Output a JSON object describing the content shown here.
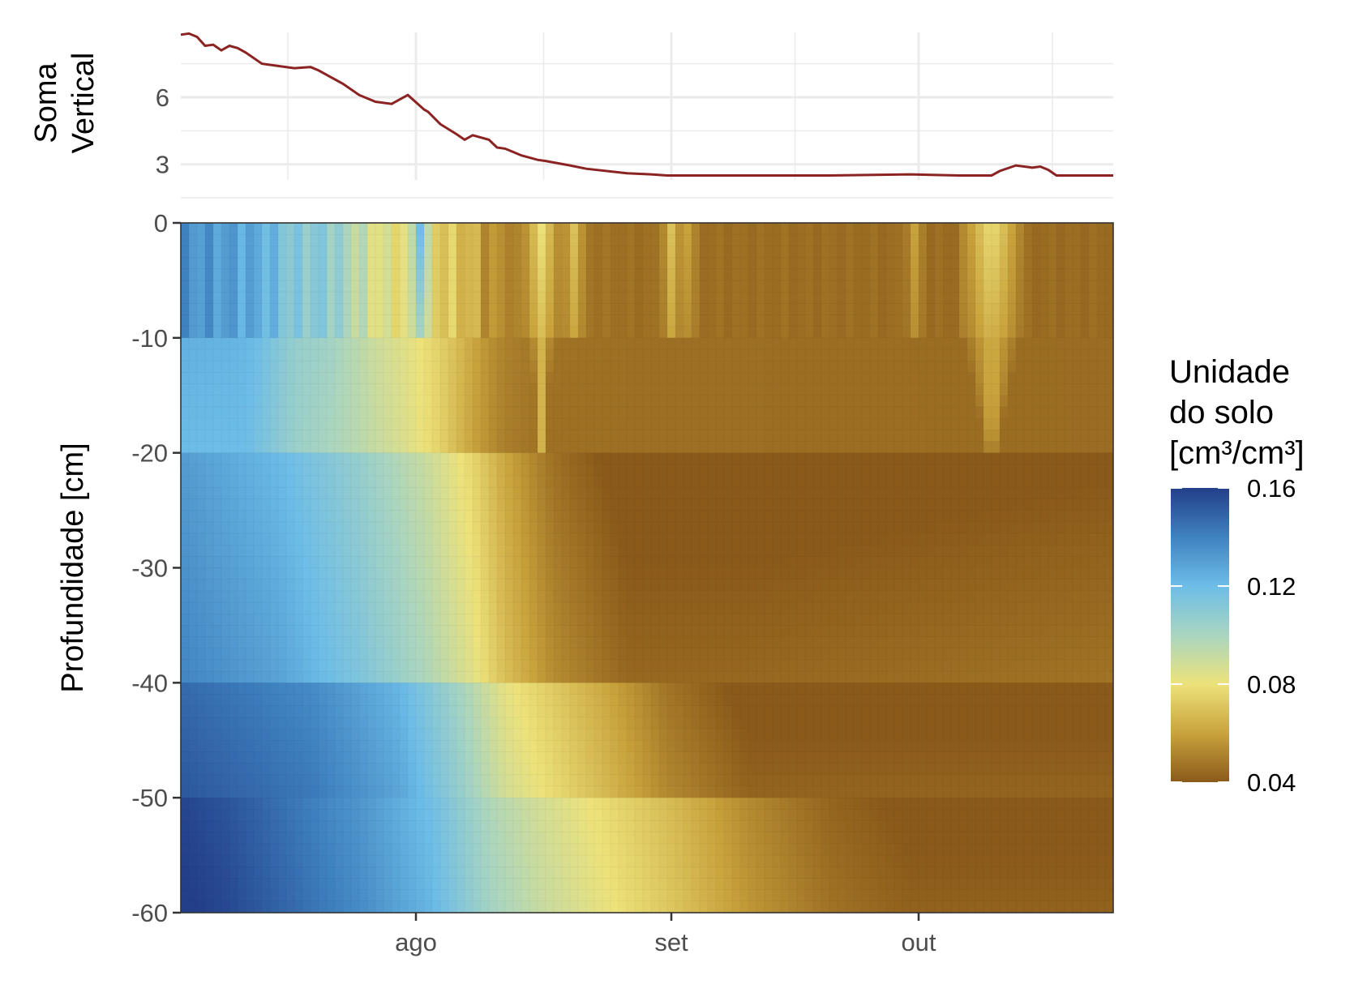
{
  "chart_data": [
    {
      "type": "line",
      "ylabel": "Soma\nVertical",
      "y_ticks": [
        3,
        6
      ],
      "ylim": [
        2.3,
        8.9
      ],
      "grid": true,
      "line_color": "#8B2323",
      "series": [
        {
          "x": [
            0,
            1,
            2,
            3,
            4,
            5,
            6,
            7,
            8,
            10,
            12,
            14,
            16,
            17,
            18,
            20,
            22,
            24,
            26,
            28,
            30,
            30.5,
            32,
            34,
            35,
            36,
            38,
            39,
            40,
            42,
            43,
            44,
            45,
            48,
            50,
            55,
            58,
            60,
            62,
            70,
            74,
            80,
            90,
            96,
            100,
            101,
            103,
            105,
            106,
            107,
            108,
            110,
            111,
            112,
            115
          ],
          "y": [
            8.8,
            8.85,
            8.7,
            8.3,
            8.35,
            8.1,
            8.3,
            8.2,
            8.0,
            7.5,
            7.4,
            7.3,
            7.35,
            7.2,
            7.0,
            6.6,
            6.1,
            5.8,
            5.7,
            6.1,
            5.45,
            5.35,
            4.8,
            4.35,
            4.1,
            4.3,
            4.1,
            3.75,
            3.7,
            3.4,
            3.3,
            3.2,
            3.15,
            2.95,
            2.8,
            2.6,
            2.55,
            2.5,
            2.5,
            2.5,
            2.5,
            2.5,
            2.55,
            2.5,
            2.5,
            2.7,
            2.95,
            2.85,
            2.9,
            2.75,
            2.5,
            2.5,
            2.5,
            2.5,
            2.5
          ]
        }
      ]
    },
    {
      "type": "heatmap",
      "ylabel": "Profundidade [cm]",
      "x_ticks": [
        {
          "label": "ago",
          "x": 29
        },
        {
          "label": "set",
          "x": 60.5
        },
        {
          "label": "out",
          "x": 91
        }
      ],
      "xlim": [
        0,
        115
      ],
      "y_ticks": [
        "0",
        "-10",
        "-20",
        "-30",
        "-40",
        "-50",
        "-60"
      ],
      "ylim": [
        -60,
        0
      ],
      "layers_cm": [
        [
          0,
          -10
        ],
        [
          -10,
          -20
        ],
        [
          -20,
          -40
        ],
        [
          -40,
          -50
        ],
        [
          -50,
          -60
        ]
      ],
      "layer_profiles": {
        "-10": [
          [
            0,
            0.135
          ],
          [
            6,
            0.13
          ],
          [
            10,
            0.125
          ],
          [
            14,
            0.11
          ],
          [
            18,
            0.11
          ],
          [
            24,
            0.085
          ],
          [
            31,
            0.075
          ],
          [
            34,
            0.07
          ],
          [
            36,
            0.065
          ],
          [
            38,
            0.055
          ],
          [
            42,
            0.05
          ],
          [
            55,
            0.046
          ],
          [
            100,
            0.045
          ],
          [
            115,
            0.045
          ]
        ],
        "-15": [
          [
            0,
            0.12
          ],
          [
            8,
            0.12
          ],
          [
            14,
            0.105
          ],
          [
            22,
            0.095
          ],
          [
            28,
            0.085
          ],
          [
            32,
            0.075
          ],
          [
            36,
            0.06
          ],
          [
            40,
            0.05
          ],
          [
            45,
            0.046
          ],
          [
            115,
            0.045
          ]
        ],
        "-30": [
          [
            0,
            0.135
          ],
          [
            6,
            0.13
          ],
          [
            12,
            0.125
          ],
          [
            22,
            0.11
          ],
          [
            30,
            0.095
          ],
          [
            36,
            0.08
          ],
          [
            40,
            0.065
          ],
          [
            46,
            0.05
          ],
          [
            55,
            0.04
          ],
          [
            70,
            0.04
          ],
          [
            115,
            0.043
          ]
        ],
        "-45": [
          [
            0,
            0.15
          ],
          [
            8,
            0.145
          ],
          [
            16,
            0.14
          ],
          [
            27,
            0.125
          ],
          [
            34,
            0.105
          ],
          [
            40,
            0.085
          ],
          [
            46,
            0.075
          ],
          [
            52,
            0.065
          ],
          [
            60,
            0.05
          ],
          [
            70,
            0.04
          ],
          [
            115,
            0.04
          ]
        ],
        "-55": [
          [
            0,
            0.16
          ],
          [
            6,
            0.155
          ],
          [
            14,
            0.145
          ],
          [
            22,
            0.135
          ],
          [
            31,
            0.12
          ],
          [
            38,
            0.1
          ],
          [
            44,
            0.09
          ],
          [
            52,
            0.08
          ],
          [
            60,
            0.07
          ],
          [
            70,
            0.055
          ],
          [
            80,
            0.045
          ],
          [
            90,
            0.04
          ],
          [
            115,
            0.04
          ]
        ]
      },
      "surface_wet_events": [
        {
          "x": 29.5,
          "width": 1,
          "value": 0.12
        },
        {
          "x": 44.5,
          "width": 3,
          "value": 0.08
        },
        {
          "x": 48.5,
          "width": 1,
          "value": 0.07
        },
        {
          "x": 60.5,
          "width": 1,
          "value": 0.07
        },
        {
          "x": 62.5,
          "width": 1,
          "value": 0.06
        },
        {
          "x": 90.5,
          "width": 1,
          "value": 0.06
        },
        {
          "x": 100,
          "width": 7,
          "value": 0.08
        }
      ],
      "colorscale": [
        {
          "value": 0.04,
          "color": "#8B5A1A"
        },
        {
          "value": 0.06,
          "color": "#C9A33C"
        },
        {
          "value": 0.08,
          "color": "#EDE27A"
        },
        {
          "value": 0.1,
          "color": "#A9D5C0"
        },
        {
          "value": 0.12,
          "color": "#6DBDE8"
        },
        {
          "value": 0.14,
          "color": "#3F82C0"
        },
        {
          "value": 0.16,
          "color": "#233F8A"
        }
      ],
      "legend": {
        "title": [
          "Unidade",
          "do solo",
          "[cm³/cm³]"
        ],
        "ticks": [
          "0.16",
          "0.12",
          "0.08",
          "0.04"
        ],
        "tick_values": [
          0.16,
          0.12,
          0.08,
          0.04
        ],
        "placement": "right"
      }
    }
  ]
}
